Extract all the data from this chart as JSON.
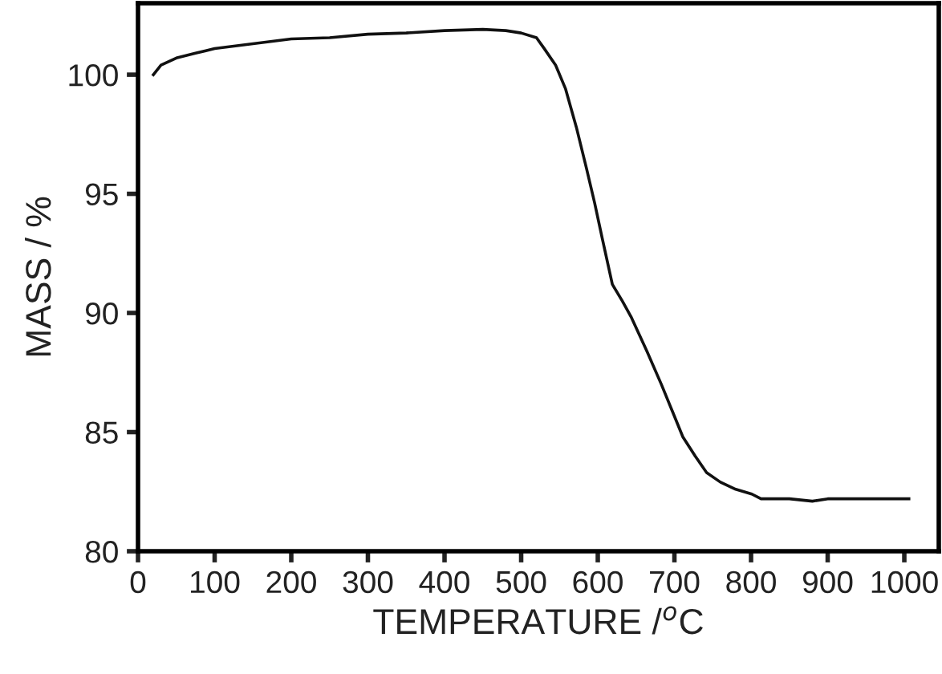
{
  "chart_data": {
    "type": "line",
    "xlabel": "TEMPERATURE /$^{o}$C",
    "ylabel": "MASS / %",
    "xlim": [
      0,
      1045
    ],
    "ylim": [
      80,
      103
    ],
    "xticks": [
      0,
      100,
      200,
      300,
      400,
      500,
      600,
      700,
      800,
      900,
      1000
    ],
    "yticks": [
      80,
      85,
      90,
      95,
      100
    ],
    "grid": false,
    "legend": false,
    "marker": "none",
    "line_style": "solid",
    "series": [
      {
        "color": "#111111",
        "x": [
          20,
          30,
          50,
          75,
          100,
          150,
          200,
          250,
          300,
          350,
          400,
          450,
          480,
          500,
          520,
          530,
          545,
          558,
          572,
          585,
          596,
          606,
          619,
          632,
          644,
          664,
          683,
          697,
          711,
          727,
          742,
          760,
          780,
          801,
          813,
          850,
          880,
          900,
          950,
          1006
        ],
        "values": [
          100.0,
          100.4,
          100.7,
          100.9,
          101.1,
          101.3,
          101.5,
          101.55,
          101.7,
          101.75,
          101.85,
          101.9,
          101.85,
          101.75,
          101.55,
          101.1,
          100.4,
          99.4,
          97.8,
          96.1,
          94.6,
          93.1,
          91.2,
          90.5,
          89.8,
          88.4,
          87.0,
          85.9,
          84.8,
          84.0,
          83.3,
          82.9,
          82.6,
          82.4,
          82.2,
          82.2,
          82.1,
          82.2,
          82.2,
          82.2
        ]
      }
    ]
  }
}
